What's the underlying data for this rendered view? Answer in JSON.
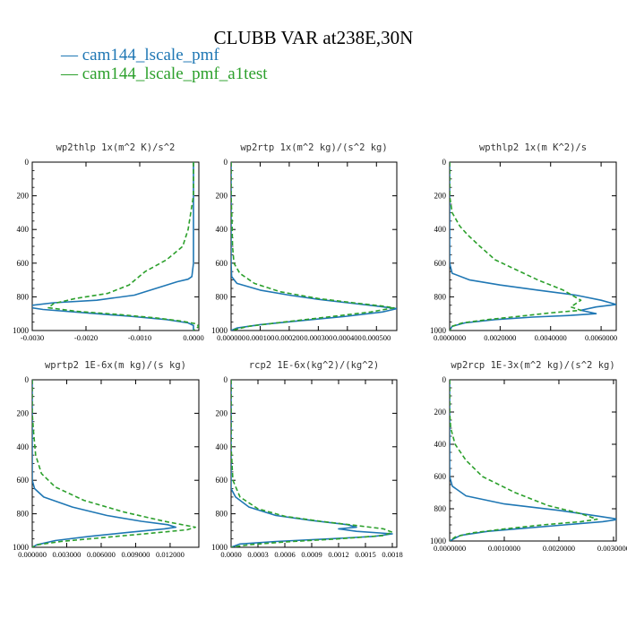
{
  "figure": {
    "title": "CLUBB VAR at238E,30N",
    "legend": [
      {
        "label": "cam144_lscale_pmf",
        "color": "#1f77b4",
        "dash": "solid"
      },
      {
        "label": "cam144_lscale_pmf_a1test",
        "color": "#2ca02c",
        "dash": "dashed"
      }
    ]
  },
  "chart_data": [
    {
      "type": "line",
      "title": "wp2thlp  1x(m^2 K)/s^2",
      "xlim": [
        -0.003,
        0.0001
      ],
      "ylim": [
        1000,
        0
      ],
      "xticks": [
        -0.003,
        -0.002,
        -0.001,
        0.0
      ],
      "xtick_labels": [
        "-0.0030",
        "-0.0020",
        "-0.0010",
        "0.0000"
      ],
      "yticks": [
        0,
        200,
        400,
        600,
        800,
        1000
      ],
      "ytick_labels": [
        "0",
        "200",
        "400",
        "600",
        "800",
        "1000"
      ],
      "series": [
        {
          "name": "cam144_lscale_pmf",
          "points": [
            [
              0,
              0
            ],
            [
              0,
              200
            ],
            [
              0,
              400
            ],
            [
              0,
              600
            ],
            [
              -3e-05,
              680
            ],
            [
              -0.0001,
              695
            ],
            [
              -0.0003,
              710
            ],
            [
              -0.0006,
              740
            ],
            [
              -0.0011,
              790
            ],
            [
              -0.0018,
              820
            ],
            [
              -0.0026,
              835
            ],
            [
              -0.003,
              850
            ],
            [
              -0.0031,
              860
            ],
            [
              -0.0028,
              875
            ],
            [
              -0.002,
              895
            ],
            [
              -0.0012,
              915
            ],
            [
              -0.0005,
              935
            ],
            [
              -0.0001,
              955
            ],
            [
              0,
              970
            ],
            [
              0,
              1000
            ]
          ]
        },
        {
          "name": "cam144_lscale_pmf_a1test",
          "points": [
            [
              0,
              0
            ],
            [
              0,
              200
            ],
            [
              -5e-05,
              300
            ],
            [
              -0.0001,
              400
            ],
            [
              -0.0002,
              500
            ],
            [
              -0.0005,
              580
            ],
            [
              -0.0009,
              650
            ],
            [
              -0.0012,
              730
            ],
            [
              -0.0016,
              780
            ],
            [
              -0.0022,
              810
            ],
            [
              -0.0026,
              840
            ],
            [
              -0.0027,
              865
            ],
            [
              -0.0022,
              885
            ],
            [
              -0.0014,
              905
            ],
            [
              -0.0007,
              925
            ],
            [
              -0.0002,
              945
            ],
            [
              5e-05,
              960
            ],
            [
              0.0001,
              975
            ],
            [
              0,
              1000
            ]
          ]
        }
      ]
    },
    {
      "type": "line",
      "title": "wp2rtp  1x(m^2 kg)/(s^2 kg)",
      "xlim": [
        0,
        0.00057
      ],
      "ylim": [
        1000,
        0
      ],
      "xticks": [
        0,
        0.0001,
        0.0002,
        0.0003,
        0.0004,
        0.0005
      ],
      "xtick_labels": [
        "0.000000",
        "0.000100",
        "0.000200",
        "0.000300",
        "0.000400",
        "0.000500"
      ],
      "yticks": [
        0,
        200,
        400,
        600,
        800,
        1000
      ],
      "ytick_labels": [
        "0",
        "200",
        "400",
        "600",
        "800",
        "1000"
      ],
      "series": [
        {
          "name": "cam144_lscale_pmf",
          "points": [
            [
              0,
              0
            ],
            [
              0,
              300
            ],
            [
              0,
              600
            ],
            [
              2e-06,
              680
            ],
            [
              2e-05,
              720
            ],
            [
              0.0001,
              760
            ],
            [
              0.0002,
              790
            ],
            [
              0.0003,
              815
            ],
            [
              0.0004,
              835
            ],
            [
              0.0005,
              855
            ],
            [
              0.00057,
              870
            ],
            [
              0.00052,
              890
            ],
            [
              0.0004,
              915
            ],
            [
              0.00025,
              940
            ],
            [
              0.0001,
              965
            ],
            [
              2e-05,
              985
            ],
            [
              0,
              1000
            ]
          ]
        },
        {
          "name": "cam144_lscale_pmf_a1test",
          "points": [
            [
              0,
              0
            ],
            [
              0,
              200
            ],
            [
              3e-06,
              350
            ],
            [
              5e-06,
              500
            ],
            [
              1e-05,
              600
            ],
            [
              3e-05,
              660
            ],
            [
              8e-05,
              720
            ],
            [
              0.00017,
              770
            ],
            [
              0.0003,
              810
            ],
            [
              0.00042,
              835
            ],
            [
              0.00052,
              855
            ],
            [
              0.00056,
              865
            ],
            [
              0.00048,
              890
            ],
            [
              0.00033,
              920
            ],
            [
              0.00018,
              950
            ],
            [
              6e-05,
              975
            ],
            [
              0,
              1000
            ]
          ]
        }
      ]
    },
    {
      "type": "line",
      "title": "wpthlp2  1x(m K^2)/s",
      "xlim": [
        0,
        0.0066
      ],
      "ylim": [
        1000,
        0
      ],
      "xticks": [
        0,
        0.002,
        0.004,
        0.006
      ],
      "xtick_labels": [
        "0.0000000",
        "0.0020000",
        "0.0040000",
        "0.0060000"
      ],
      "yticks": [
        0,
        200,
        400,
        600,
        800,
        1000
      ],
      "ytick_labels": [
        "0",
        "200",
        "400",
        "600",
        "800",
        "1000"
      ],
      "series": [
        {
          "name": "cam144_lscale_pmf",
          "points": [
            [
              0,
              0
            ],
            [
              0,
              300
            ],
            [
              0,
              600
            ],
            [
              0.0001,
              660
            ],
            [
              0.0008,
              700
            ],
            [
              0.002,
              730
            ],
            [
              0.0035,
              760
            ],
            [
              0.005,
              790
            ],
            [
              0.006,
              820
            ],
            [
              0.0066,
              845
            ],
            [
              0.0058,
              860
            ],
            [
              0.0052,
              880
            ],
            [
              0.0058,
              900
            ],
            [
              0.0048,
              910
            ],
            [
              0.0033,
              920
            ],
            [
              0.0018,
              935
            ],
            [
              0.0006,
              955
            ],
            [
              0.0001,
              975
            ],
            [
              0,
              1000
            ]
          ]
        },
        {
          "name": "cam144_lscale_pmf_a1test",
          "points": [
            [
              0,
              0
            ],
            [
              0,
              200
            ],
            [
              0.0001,
              300
            ],
            [
              0.0004,
              380
            ],
            [
              0.0007,
              430
            ],
            [
              0.0012,
              500
            ],
            [
              0.0018,
              580
            ],
            [
              0.0025,
              630
            ],
            [
              0.0035,
              700
            ],
            [
              0.0045,
              760
            ],
            [
              0.0052,
              820
            ],
            [
              0.0048,
              860
            ],
            [
              0.0052,
              880
            ],
            [
              0.004,
              895
            ],
            [
              0.0028,
              915
            ],
            [
              0.0015,
              935
            ],
            [
              0.0005,
              955
            ],
            [
              0.0001,
              975
            ],
            [
              0,
              1000
            ]
          ]
        }
      ]
    },
    {
      "type": "line",
      "title": "wprtp2  1E-6x(m kg)/(s kg)",
      "xlim": [
        0,
        0.0145
      ],
      "ylim": [
        1000,
        0
      ],
      "xticks": [
        0,
        0.003,
        0.006,
        0.009,
        0.012
      ],
      "xtick_labels": [
        "0.000000",
        "0.003000",
        "0.006000",
        "0.009000",
        "0.012000"
      ],
      "yticks": [
        0,
        200,
        400,
        600,
        800,
        1000
      ],
      "ytick_labels": [
        "0",
        "200",
        "400",
        "600",
        "800",
        "1000"
      ],
      "series": [
        {
          "name": "cam144_lscale_pmf",
          "points": [
            [
              0,
              0
            ],
            [
              0,
              300
            ],
            [
              0,
              600
            ],
            [
              0.0002,
              650
            ],
            [
              0.001,
              700
            ],
            [
              0.0035,
              760
            ],
            [
              0.0065,
              810
            ],
            [
              0.0095,
              845
            ],
            [
              0.0118,
              865
            ],
            [
              0.0125,
              880
            ],
            [
              0.0115,
              890
            ],
            [
              0.0085,
              910
            ],
            [
              0.005,
              935
            ],
            [
              0.002,
              960
            ],
            [
              0.0004,
              985
            ],
            [
              0,
              1000
            ]
          ]
        },
        {
          "name": "cam144_lscale_pmf_a1test",
          "points": [
            [
              0,
              0
            ],
            [
              0,
              200
            ],
            [
              0.0001,
              300
            ],
            [
              0.0003,
              450
            ],
            [
              0.0008,
              560
            ],
            [
              0.002,
              640
            ],
            [
              0.0045,
              720
            ],
            [
              0.008,
              790
            ],
            [
              0.0115,
              845
            ],
            [
              0.0142,
              880
            ],
            [
              0.0135,
              895
            ],
            [
              0.0105,
              915
            ],
            [
              0.0065,
              940
            ],
            [
              0.0025,
              965
            ],
            [
              0.0005,
              985
            ],
            [
              0,
              1000
            ]
          ]
        }
      ]
    },
    {
      "type": "line",
      "title": "rcp2  1E-6x(kg^2)/(kg^2)",
      "xlim": [
        0,
        0.00185
      ],
      "ylim": [
        1000,
        0
      ],
      "xticks": [
        0,
        0.0003,
        0.0006,
        0.0009,
        0.0012,
        0.0015,
        0.0018
      ],
      "xtick_labels": [
        "0.0000",
        "0.0003",
        "0.0006",
        "0.0009",
        "0.0012",
        "0.0015",
        "0.0018"
      ],
      "yticks": [
        0,
        200,
        400,
        600,
        800,
        1000
      ],
      "ytick_labels": [
        "0",
        "200",
        "400",
        "600",
        "800",
        "1000"
      ],
      "series": [
        {
          "name": "cam144_lscale_pmf",
          "points": [
            [
              0,
              0
            ],
            [
              0,
              400
            ],
            [
              0,
              650
            ],
            [
              5e-05,
              700
            ],
            [
              0.0002,
              760
            ],
            [
              0.0005,
              810
            ],
            [
              0.0009,
              840
            ],
            [
              0.0013,
              865
            ],
            [
              0.0014,
              880
            ],
            [
              0.0012,
              890
            ],
            [
              0.0014,
              905
            ],
            [
              0.0018,
              920
            ],
            [
              0.0016,
              935
            ],
            [
              0.0011,
              950
            ],
            [
              0.0005,
              965
            ],
            [
              0.0001,
              980
            ],
            [
              0,
              1000
            ]
          ]
        },
        {
          "name": "cam144_lscale_pmf_a1test",
          "points": [
            [
              0,
              0
            ],
            [
              0,
              400
            ],
            [
              2e-05,
              600
            ],
            [
              0.0001,
              700
            ],
            [
              0.0003,
              770
            ],
            [
              0.0006,
              815
            ],
            [
              0.001,
              845
            ],
            [
              0.0014,
              870
            ],
            [
              0.0017,
              890
            ],
            [
              0.0018,
              910
            ],
            [
              0.0017,
              930
            ],
            [
              0.0012,
              950
            ],
            [
              0.0006,
              968
            ],
            [
              0.0002,
              985
            ],
            [
              0,
              1000
            ]
          ]
        }
      ]
    },
    {
      "type": "line",
      "title": "wp2rcp  1E-3x(m^2 kg)/(s^2 kg)",
      "xlim": [
        0,
        0.00305
      ],
      "ylim": [
        1000,
        0
      ],
      "xticks": [
        0,
        0.001,
        0.002,
        0.003
      ],
      "xtick_labels": [
        "0.0000000",
        "0.0010000",
        "0.0020000",
        "0.0030000"
      ],
      "yticks": [
        0,
        200,
        400,
        600,
        800,
        1000
      ],
      "ytick_labels": [
        "0",
        "200",
        "400",
        "600",
        "800",
        "1000"
      ],
      "series": [
        {
          "name": "cam144_lscale_pmf",
          "points": [
            [
              0,
              0
            ],
            [
              0,
              300
            ],
            [
              0,
              600
            ],
            [
              5e-05,
              660
            ],
            [
              0.0003,
              720
            ],
            [
              0.001,
              770
            ],
            [
              0.002,
              810
            ],
            [
              0.0027,
              845
            ],
            [
              0.0031,
              865
            ],
            [
              0.0028,
              880
            ],
            [
              0.0021,
              900
            ],
            [
              0.0014,
              920
            ],
            [
              0.0007,
              940
            ],
            [
              0.0002,
              965
            ],
            [
              0,
              1000
            ]
          ]
        },
        {
          "name": "cam144_lscale_pmf_a1test",
          "points": [
            [
              0,
              0
            ],
            [
              0,
              200
            ],
            [
              2e-05,
              300
            ],
            [
              0.0001,
              400
            ],
            [
              0.0003,
              500
            ],
            [
              0.0006,
              600
            ],
            [
              0.0012,
              700
            ],
            [
              0.0018,
              780
            ],
            [
              0.0024,
              830
            ],
            [
              0.0027,
              865
            ],
            [
              0.0024,
              880
            ],
            [
              0.0017,
              900
            ],
            [
              0.001,
              925
            ],
            [
              0.0004,
              950
            ],
            [
              0.0001,
              975
            ],
            [
              0,
              1000
            ]
          ]
        }
      ]
    }
  ]
}
